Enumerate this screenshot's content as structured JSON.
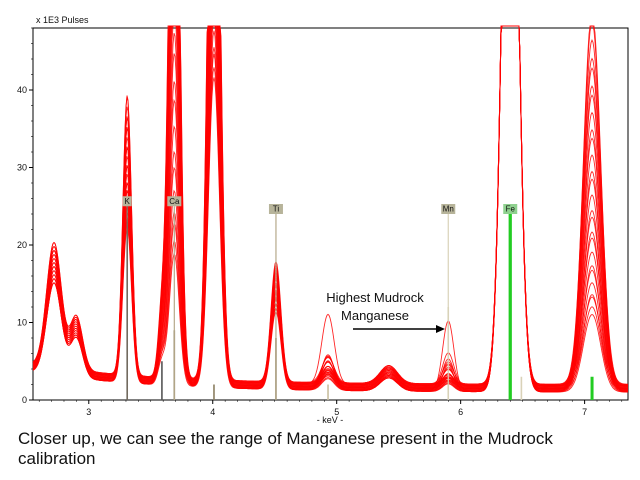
{
  "chart_data": {
    "type": "line",
    "title": "",
    "unit_label": "x 1E3 Pulses",
    "xlabel": "- keV -",
    "ylabel": "",
    "xlim": [
      2.55,
      7.35
    ],
    "ylim": [
      0,
      48
    ],
    "x_ticks": [
      3,
      4,
      5,
      6,
      7
    ],
    "y_ticks": [
      0,
      10,
      20,
      30,
      40
    ],
    "element_markers": [
      {
        "name": "K",
        "kev": 3.31,
        "line_height": 25,
        "color": "#7a7060"
      },
      {
        "name": "Ca",
        "kev": 3.69,
        "line_height": 25,
        "color": "#b5a98a"
      },
      {
        "name": "Ti",
        "kev": 4.51,
        "line_height": 24,
        "color": "#b5a98a"
      },
      {
        "name": "Mn",
        "kev": 5.9,
        "line_height": 24,
        "color": "#d9d2b8"
      },
      {
        "name": "Fe",
        "kev": 6.4,
        "line_height": 24,
        "color": "#22cc22"
      }
    ],
    "reference_lines": [
      {
        "kev": 3.31,
        "height": 23,
        "color": "#555555"
      },
      {
        "kev": 3.59,
        "height": 5,
        "color": "#555555"
      },
      {
        "kev": 3.69,
        "height": 9,
        "color": "#8a7e60"
      },
      {
        "kev": 4.01,
        "height": 2,
        "color": "#8a7e60"
      },
      {
        "kev": 4.51,
        "height": 8,
        "color": "#8a7e60"
      },
      {
        "kev": 4.93,
        "height": 2,
        "color": "#c9bf9f"
      },
      {
        "kev": 5.9,
        "height": 12,
        "color": "#d9d2b8"
      },
      {
        "kev": 6.4,
        "height": 24,
        "color": "#22cc22"
      },
      {
        "kev": 6.49,
        "height": 3,
        "color": "#d9d2b8"
      },
      {
        "kev": 7.06,
        "height": 3,
        "color": "#22cc22"
      }
    ],
    "peaks": [
      {
        "kev": 2.72,
        "height": 14
      },
      {
        "kev": 2.9,
        "height": 6
      },
      {
        "kev": 3.31,
        "height_range": [
          20,
          37
        ]
      },
      {
        "kev": 3.59,
        "height_range": [
          3,
          9
        ]
      },
      {
        "kev": 3.69,
        "height_range": [
          17,
          100
        ]
      },
      {
        "kev": 4.01,
        "height_range": [
          40,
          100
        ]
      },
      {
        "kev": 4.51,
        "height_range": [
          10,
          16
        ]
      },
      {
        "kev": 4.93,
        "height_range": [
          1.5,
          9
        ]
      },
      {
        "kev": 5.42,
        "height": 2
      },
      {
        "kev": 5.9,
        "height_range": [
          1,
          9
        ]
      },
      {
        "kev": 6.4,
        "height_range": [
          100,
          100
        ]
      },
      {
        "kev": 7.06,
        "height_range": [
          10,
          49
        ]
      }
    ],
    "series_count": 26,
    "series_color": "#ff0000",
    "annotation": {
      "text_lines": [
        "Highest Mudrock",
        "Manganese"
      ],
      "points_to_kev": 5.88
    }
  },
  "caption": "Closer up, we can see the range of Manganese present in the Mudrock calibration"
}
